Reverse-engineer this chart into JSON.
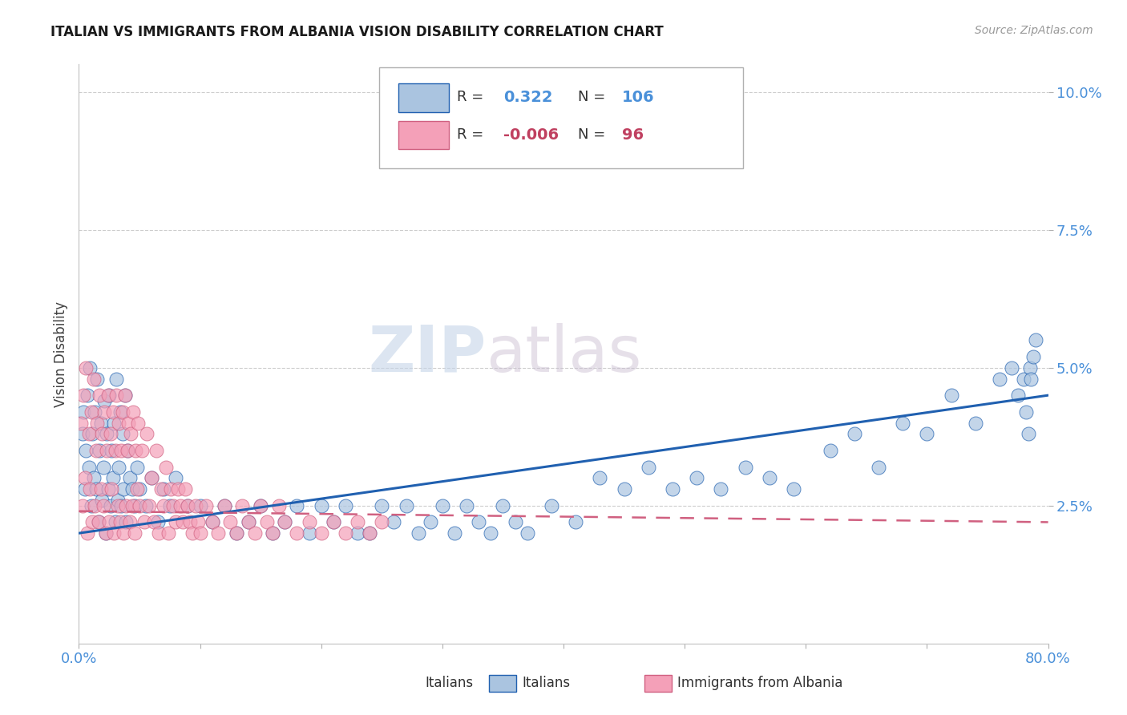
{
  "title": "ITALIAN VS IMMIGRANTS FROM ALBANIA VISION DISABILITY CORRELATION CHART",
  "source": "Source: ZipAtlas.com",
  "ylabel": "Vision Disability",
  "xlim": [
    0.0,
    0.8
  ],
  "ylim": [
    0.0,
    0.105
  ],
  "yticks": [
    0.025,
    0.05,
    0.075,
    0.1
  ],
  "ytick_labels": [
    "2.5%",
    "5.0%",
    "7.5%",
    "10.0%"
  ],
  "xtick_left_label": "0.0%",
  "xtick_right_label": "80.0%",
  "legend_italians_R": "0.322",
  "legend_italians_N": "106",
  "legend_albania_R": "-0.006",
  "legend_albania_N": "96",
  "color_italians": "#aac4e0",
  "color_albania": "#f4a0b8",
  "color_trend_italians": "#2060b0",
  "color_trend_albania": "#d06080",
  "watermark_zip": "ZIP",
  "watermark_atlas": "atlas",
  "background_color": "#ffffff",
  "title_fontsize": 12,
  "italians_x": [
    0.003,
    0.004,
    0.005,
    0.006,
    0.007,
    0.008,
    0.009,
    0.01,
    0.011,
    0.012,
    0.013,
    0.014,
    0.015,
    0.016,
    0.017,
    0.018,
    0.019,
    0.02,
    0.021,
    0.022,
    0.023,
    0.024,
    0.025,
    0.026,
    0.027,
    0.028,
    0.029,
    0.03,
    0.031,
    0.032,
    0.033,
    0.034,
    0.035,
    0.036,
    0.037,
    0.038,
    0.039,
    0.04,
    0.042,
    0.044,
    0.046,
    0.048,
    0.05,
    0.055,
    0.06,
    0.065,
    0.07,
    0.075,
    0.08,
    0.09,
    0.1,
    0.11,
    0.12,
    0.13,
    0.14,
    0.15,
    0.16,
    0.17,
    0.18,
    0.19,
    0.2,
    0.21,
    0.22,
    0.23,
    0.24,
    0.25,
    0.26,
    0.27,
    0.28,
    0.29,
    0.3,
    0.31,
    0.32,
    0.33,
    0.34,
    0.35,
    0.36,
    0.37,
    0.39,
    0.41,
    0.43,
    0.45,
    0.47,
    0.49,
    0.51,
    0.53,
    0.55,
    0.57,
    0.59,
    0.62,
    0.64,
    0.66,
    0.68,
    0.7,
    0.72,
    0.74,
    0.76,
    0.77,
    0.775,
    0.78,
    0.782,
    0.784,
    0.785,
    0.786,
    0.788,
    0.79
  ],
  "italians_y": [
    0.038,
    0.042,
    0.028,
    0.035,
    0.045,
    0.032,
    0.05,
    0.025,
    0.038,
    0.03,
    0.042,
    0.028,
    0.048,
    0.022,
    0.035,
    0.04,
    0.026,
    0.032,
    0.044,
    0.02,
    0.038,
    0.028,
    0.045,
    0.025,
    0.035,
    0.03,
    0.04,
    0.022,
    0.048,
    0.026,
    0.032,
    0.042,
    0.025,
    0.038,
    0.028,
    0.045,
    0.022,
    0.035,
    0.03,
    0.028,
    0.025,
    0.032,
    0.028,
    0.025,
    0.03,
    0.022,
    0.028,
    0.025,
    0.03,
    0.025,
    0.025,
    0.022,
    0.025,
    0.02,
    0.022,
    0.025,
    0.02,
    0.022,
    0.025,
    0.02,
    0.025,
    0.022,
    0.025,
    0.02,
    0.02,
    0.025,
    0.022,
    0.025,
    0.02,
    0.022,
    0.025,
    0.02,
    0.025,
    0.022,
    0.02,
    0.025,
    0.022,
    0.02,
    0.025,
    0.022,
    0.03,
    0.028,
    0.032,
    0.028,
    0.03,
    0.028,
    0.032,
    0.03,
    0.028,
    0.035,
    0.038,
    0.032,
    0.04,
    0.038,
    0.045,
    0.04,
    0.048,
    0.05,
    0.045,
    0.048,
    0.042,
    0.038,
    0.05,
    0.048,
    0.052,
    0.055
  ],
  "albania_x": [
    0.002,
    0.003,
    0.004,
    0.005,
    0.006,
    0.007,
    0.008,
    0.009,
    0.01,
    0.011,
    0.012,
    0.013,
    0.014,
    0.015,
    0.016,
    0.017,
    0.018,
    0.019,
    0.02,
    0.021,
    0.022,
    0.023,
    0.024,
    0.025,
    0.026,
    0.027,
    0.028,
    0.029,
    0.03,
    0.031,
    0.032,
    0.033,
    0.034,
    0.035,
    0.036,
    0.037,
    0.038,
    0.039,
    0.04,
    0.041,
    0.042,
    0.043,
    0.044,
    0.045,
    0.046,
    0.047,
    0.048,
    0.049,
    0.05,
    0.052,
    0.054,
    0.056,
    0.058,
    0.06,
    0.062,
    0.064,
    0.066,
    0.068,
    0.07,
    0.072,
    0.074,
    0.076,
    0.078,
    0.08,
    0.082,
    0.084,
    0.086,
    0.088,
    0.09,
    0.092,
    0.094,
    0.096,
    0.098,
    0.1,
    0.105,
    0.11,
    0.115,
    0.12,
    0.125,
    0.13,
    0.135,
    0.14,
    0.145,
    0.15,
    0.155,
    0.16,
    0.165,
    0.17,
    0.18,
    0.19,
    0.2,
    0.21,
    0.22,
    0.23,
    0.24,
    0.25
  ],
  "albania_y": [
    0.04,
    0.025,
    0.045,
    0.03,
    0.05,
    0.02,
    0.038,
    0.028,
    0.042,
    0.022,
    0.048,
    0.025,
    0.035,
    0.04,
    0.022,
    0.045,
    0.028,
    0.038,
    0.025,
    0.042,
    0.02,
    0.035,
    0.045,
    0.022,
    0.038,
    0.028,
    0.042,
    0.02,
    0.035,
    0.045,
    0.025,
    0.04,
    0.022,
    0.035,
    0.042,
    0.02,
    0.045,
    0.025,
    0.035,
    0.04,
    0.022,
    0.038,
    0.025,
    0.042,
    0.02,
    0.035,
    0.028,
    0.04,
    0.025,
    0.035,
    0.022,
    0.038,
    0.025,
    0.03,
    0.022,
    0.035,
    0.02,
    0.028,
    0.025,
    0.032,
    0.02,
    0.028,
    0.025,
    0.022,
    0.028,
    0.025,
    0.022,
    0.028,
    0.025,
    0.022,
    0.02,
    0.025,
    0.022,
    0.02,
    0.025,
    0.022,
    0.02,
    0.025,
    0.022,
    0.02,
    0.025,
    0.022,
    0.02,
    0.025,
    0.022,
    0.02,
    0.025,
    0.022,
    0.02,
    0.022,
    0.02,
    0.022,
    0.02,
    0.022,
    0.02,
    0.022
  ],
  "italians_trend_x": [
    0.0,
    0.8
  ],
  "italians_trend_y": [
    0.02,
    0.045
  ],
  "albania_trend_x": [
    0.0,
    0.8
  ],
  "albania_trend_y": [
    0.024,
    0.022
  ]
}
